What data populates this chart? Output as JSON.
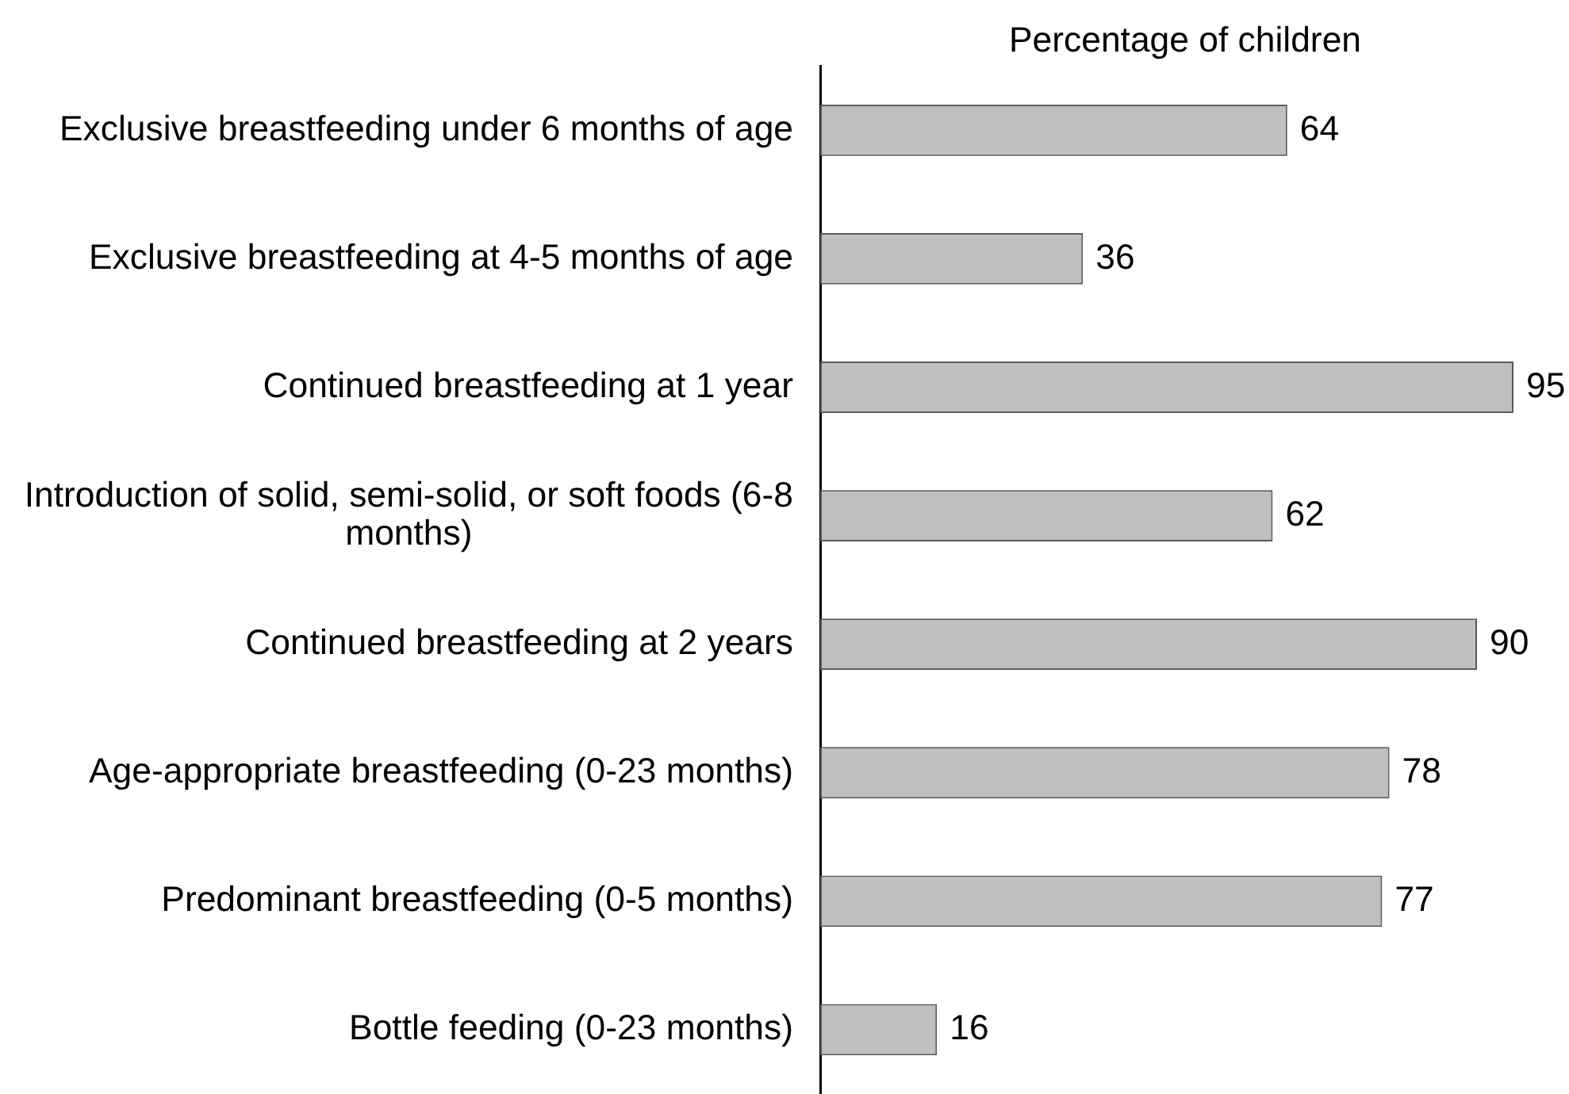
{
  "chart_data": {
    "type": "bar",
    "orientation": "horizontal",
    "xlabel": "Percentage of children",
    "categories": [
      "Exclusive breastfeeding under 6 months of age",
      "Exclusive breastfeeding at 4-5 months of age",
      "Continued breastfeeding at 1 year",
      "Introduction of solid, semi-solid, or soft foods (6-8 months)",
      "Continued breastfeeding at 2 years",
      "Age-appropriate breastfeeding (0-23 months)",
      "Predominant breastfeeding (0-5 months)",
      "Bottle feeding (0-23 months)"
    ],
    "values": [
      64,
      36,
      95,
      62,
      90,
      78,
      77,
      16
    ],
    "color": "#bfbfbf",
    "data_labels": true,
    "legend": false,
    "grid": false,
    "tick_labels": "y"
  }
}
